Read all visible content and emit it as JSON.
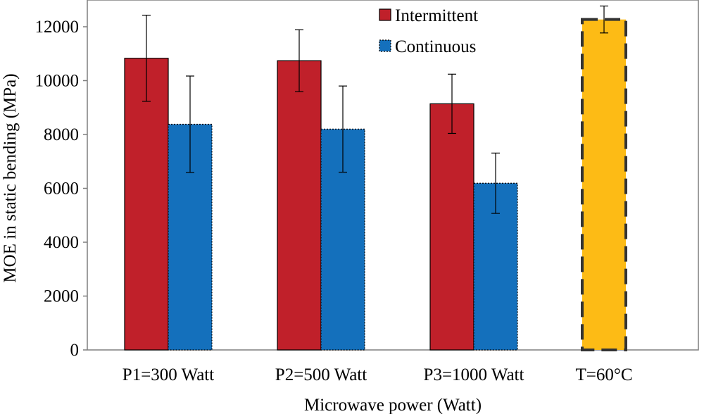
{
  "chart_data": {
    "type": "bar",
    "categories": [
      "P1=300 Watt",
      "P2=500 Watt",
      "P3=1000 Watt",
      "T=60°C"
    ],
    "xlabel": "Microwave power (Watt)",
    "ylabel": "MOE  in static bending (MPa)",
    "ylim": [
      0,
      13000
    ],
    "yticks": [
      0,
      2000,
      4000,
      6000,
      8000,
      10000,
      12000
    ],
    "grid": false,
    "legend_position": "top-center",
    "series": [
      {
        "name": "Intermittent",
        "color": "#c0202a",
        "border": "solid",
        "values": [
          10830,
          10740,
          9140,
          null
        ],
        "error": [
          1600,
          1150,
          1100,
          null
        ]
      },
      {
        "name": "Continuous",
        "color": "#1470bc",
        "border": "dotted",
        "values": [
          8380,
          8200,
          6190,
          null
        ],
        "error": [
          1790,
          1600,
          1120,
          null
        ]
      },
      {
        "name": "",
        "color": "#fdbb15",
        "border": "dashed",
        "values": [
          null,
          null,
          null,
          12270
        ],
        "error": [
          null,
          null,
          null,
          500
        ]
      }
    ]
  }
}
